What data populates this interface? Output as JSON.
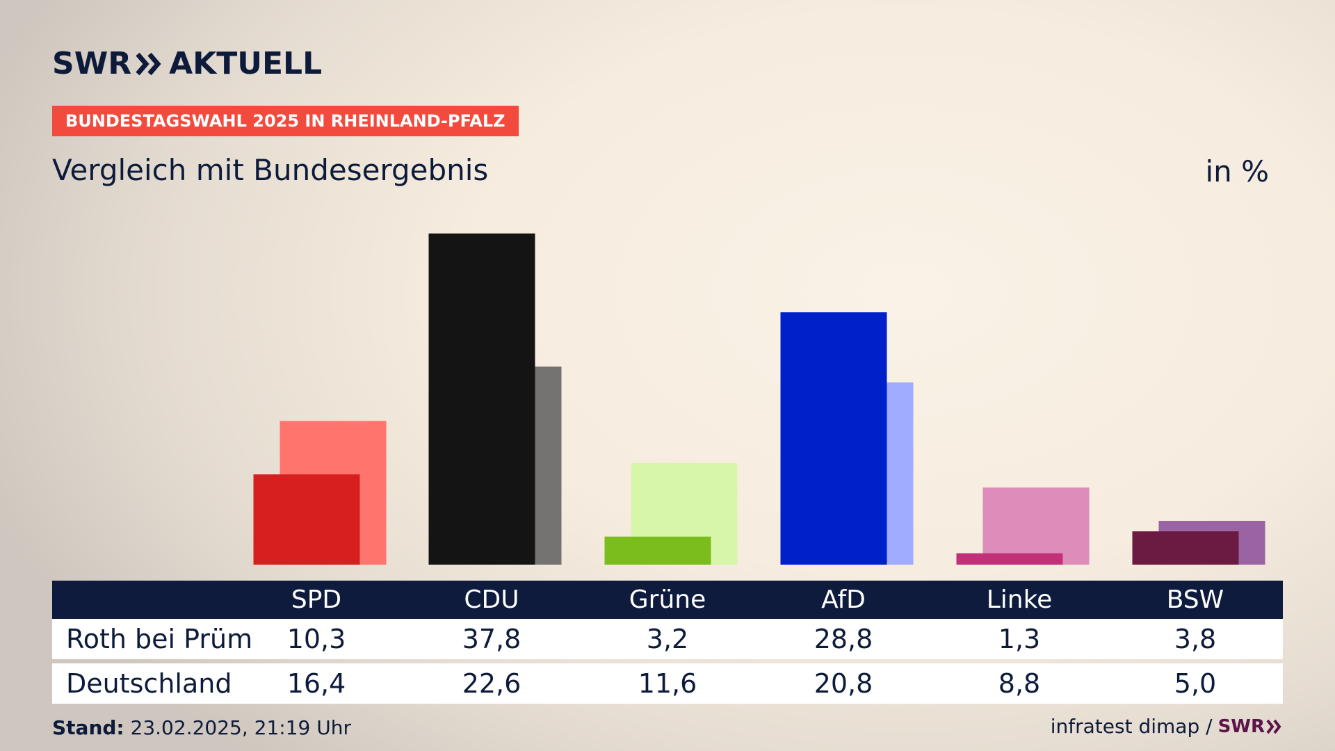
{
  "header": {
    "brand_left": "SWR",
    "brand_right": "AKTUELL",
    "badge": "BUNDESTAGSWAHL 2025 IN RHEINLAND-PFALZ",
    "subtitle": "Vergleich mit Bundesergebnis",
    "unit": "in %"
  },
  "chart_data": {
    "type": "bar",
    "categories": [
      "SPD",
      "CDU",
      "Grüne",
      "AfD",
      "Linke",
      "BSW"
    ],
    "series": [
      {
        "name": "Roth bei Prüm",
        "values": [
          10.3,
          37.8,
          3.2,
          28.8,
          1.3,
          3.8
        ],
        "colors": [
          "#d81f1f",
          "#141414",
          "#7abd1c",
          "#0021c9",
          "#c2307a",
          "#6b1a42"
        ]
      },
      {
        "name": "Deutschland",
        "values": [
          16.4,
          22.6,
          11.6,
          20.8,
          8.8,
          5.0
        ],
        "colors": [
          "#ff746c",
          "#757371",
          "#d7f6aa",
          "#a0acff",
          "#de8cba",
          "#9a64a2"
        ]
      }
    ],
    "ylim": [
      0,
      40
    ]
  },
  "table": {
    "headers": [
      "SPD",
      "CDU",
      "Grüne",
      "AfD",
      "Linke",
      "BSW"
    ],
    "rows": [
      {
        "label": "Roth bei Prüm",
        "values": [
          "10,3",
          "37,8",
          "3,2",
          "28,8",
          "1,3",
          "3,8"
        ]
      },
      {
        "label": "Deutschland",
        "values": [
          "16,4",
          "22,6",
          "11,6",
          "20,8",
          "8,8",
          "5,0"
        ]
      }
    ]
  },
  "footer": {
    "stand_label": "Stand:",
    "stand_value": "23.02.2025, 21:19 Uhr",
    "source": "infratest dimap /",
    "logo": "SWR"
  }
}
